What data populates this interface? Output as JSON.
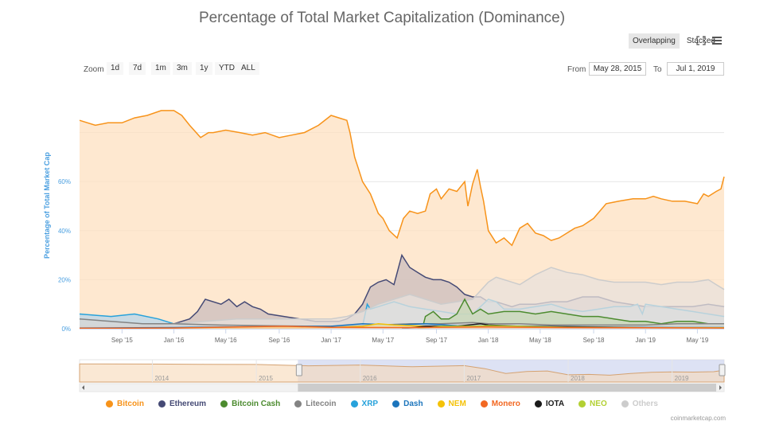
{
  "title": "Percentage of Total Market Capitalization (Dominance)",
  "modes": {
    "overlapping": "Overlapping",
    "stacked": "Stacked",
    "fullscreen_icon": "fullscreen-icon",
    "menu_icon": "menu-icon"
  },
  "zoom": {
    "label": "Zoom",
    "buttons": [
      "1d",
      "7d",
      "1m",
      "3m",
      "1y",
      "YTD",
      "ALL"
    ]
  },
  "range": {
    "from_label": "From",
    "from_value": "May 28, 2015",
    "to_label": "To",
    "to_value": "Jul 1, 2019"
  },
  "credit": "coinmarketcap.com",
  "chart_data": {
    "type": "area",
    "title": "Percentage of Total Market Capitalization (Dominance)",
    "ylabel": "Percentage of Total Market Cap",
    "ylim": [
      0,
      100
    ],
    "y_ticks": [
      0,
      20,
      40,
      60
    ],
    "y_tick_labels": [
      "0%",
      "20%",
      "40%",
      "60%"
    ],
    "x_range": [
      2015.4,
      2019.5
    ],
    "x_ticks": [
      {
        "x": 2015.67,
        "label": "Sep '15"
      },
      {
        "x": 2016.0,
        "label": "Jan '16"
      },
      {
        "x": 2016.33,
        "label": "May '16"
      },
      {
        "x": 2016.67,
        "label": "Sep '16"
      },
      {
        "x": 2017.0,
        "label": "Jan '17"
      },
      {
        "x": 2017.33,
        "label": "May '17"
      },
      {
        "x": 2017.67,
        "label": "Sep '17"
      },
      {
        "x": 2018.0,
        "label": "Jan '18"
      },
      {
        "x": 2018.33,
        "label": "May '18"
      },
      {
        "x": 2018.67,
        "label": "Sep '18"
      },
      {
        "x": 2019.0,
        "label": "Jan '19"
      },
      {
        "x": 2019.33,
        "label": "May '19"
      }
    ],
    "series": [
      {
        "name": "Bitcoin",
        "color": "#f7931a",
        "fill": "#fde0c0",
        "x": [
          2015.4,
          2015.5,
          2015.58,
          2015.67,
          2015.75,
          2015.83,
          2015.92,
          2016.0,
          2016.05,
          2016.1,
          2016.17,
          2016.22,
          2016.25,
          2016.33,
          2016.42,
          2016.5,
          2016.58,
          2016.67,
          2016.75,
          2016.83,
          2016.92,
          2017.0,
          2017.05,
          2017.1,
          2017.12,
          2017.15,
          2017.17,
          2017.2,
          2017.25,
          2017.3,
          2017.33,
          2017.37,
          2017.42,
          2017.46,
          2017.5,
          2017.55,
          2017.6,
          2017.63,
          2017.67,
          2017.7,
          2017.75,
          2017.8,
          2017.85,
          2017.87,
          2017.9,
          2017.93,
          2017.95,
          2017.97,
          2018.0,
          2018.05,
          2018.1,
          2018.15,
          2018.2,
          2018.25,
          2018.3,
          2018.35,
          2018.4,
          2018.45,
          2018.5,
          2018.55,
          2018.6,
          2018.67,
          2018.75,
          2018.83,
          2018.92,
          2019.0,
          2019.05,
          2019.1,
          2019.17,
          2019.25,
          2019.33,
          2019.37,
          2019.4,
          2019.45,
          2019.48,
          2019.5
        ],
        "values": [
          85,
          83,
          84,
          84,
          86,
          87,
          89,
          89,
          87,
          83,
          78,
          80,
          80,
          81,
          80,
          79,
          80,
          78,
          79,
          80,
          83,
          87,
          86,
          85,
          80,
          70,
          66,
          60,
          55,
          47,
          45,
          40,
          37,
          45,
          48,
          47,
          48,
          55,
          57,
          53,
          57,
          56,
          60,
          50,
          59,
          65,
          58,
          52,
          40,
          35,
          37,
          34,
          41,
          43,
          39,
          38,
          36,
          37,
          39,
          41,
          42,
          45,
          51,
          52,
          53,
          53,
          54,
          53,
          52,
          52,
          51,
          55,
          54,
          56,
          57,
          62
        ]
      },
      {
        "name": "Ethereum",
        "color": "#454a75",
        "fill": "#cbbdbd",
        "x": [
          2015.4,
          2015.7,
          2015.9,
          2016.0,
          2016.1,
          2016.15,
          2016.2,
          2016.3,
          2016.35,
          2016.4,
          2016.45,
          2016.5,
          2016.55,
          2016.6,
          2016.7,
          2016.8,
          2016.9,
          2017.0,
          2017.05,
          2017.1,
          2017.15,
          2017.2,
          2017.25,
          2017.3,
          2017.35,
          2017.4,
          2017.45,
          2017.5,
          2017.55,
          2017.6,
          2017.65,
          2017.7,
          2017.75,
          2017.8,
          2017.85,
          2017.9,
          2017.95,
          2018.0,
          2018.05,
          2018.1,
          2018.15,
          2018.2,
          2018.3,
          2018.4,
          2018.5,
          2018.6,
          2018.7,
          2018.8,
          2018.9,
          2019.0,
          2019.1,
          2019.2,
          2019.3,
          2019.4,
          2019.5
        ],
        "values": [
          0,
          0.5,
          1,
          2,
          4,
          7,
          12,
          10,
          12,
          9,
          11,
          9,
          8,
          6,
          5,
          4,
          3,
          3,
          3,
          4,
          6,
          10,
          17,
          19,
          20,
          18,
          30,
          25,
          23,
          21,
          20,
          20,
          19,
          17,
          14,
          13,
          13,
          11,
          11,
          10,
          9,
          10,
          10,
          11,
          11,
          13,
          13,
          11,
          10,
          9,
          9,
          9,
          9,
          10,
          9
        ]
      },
      {
        "name": "XRP",
        "color": "#27a2db",
        "fill": "#b8d6ea",
        "x": [
          2015.4,
          2015.6,
          2015.75,
          2015.9,
          2016.0,
          2016.1,
          2016.3,
          2016.5,
          2016.7,
          2016.9,
          2017.0,
          2017.1,
          2017.2,
          2017.23,
          2017.25,
          2017.3,
          2017.4,
          2017.5,
          2017.6,
          2017.7,
          2017.8,
          2017.9,
          2017.95,
          2018.0,
          2018.05,
          2018.1,
          2018.2,
          2018.3,
          2018.4,
          2018.5,
          2018.6,
          2018.7,
          2018.8,
          2018.9,
          2018.95,
          2018.98,
          2019.0,
          2019.1,
          2019.2,
          2019.3,
          2019.4,
          2019.5
        ],
        "values": [
          6,
          5,
          6,
          4,
          2,
          1,
          1,
          1,
          0.8,
          0.6,
          0.5,
          0.5,
          1,
          10,
          8,
          9,
          11,
          9,
          8,
          7,
          6,
          6,
          9,
          12,
          11,
          8,
          8,
          9,
          10,
          8,
          7,
          8,
          9,
          9,
          10,
          6,
          10,
          9,
          8,
          7,
          6,
          5
        ]
      },
      {
        "name": "Others",
        "color": "#cccccc",
        "fill": "#e8e1dc",
        "x": [
          2015.4,
          2015.8,
          2016.0,
          2016.2,
          2016.4,
          2016.6,
          2016.8,
          2017.0,
          2017.1,
          2017.2,
          2017.3,
          2017.4,
          2017.5,
          2017.6,
          2017.7,
          2017.8,
          2017.9,
          2018.0,
          2018.05,
          2018.1,
          2018.2,
          2018.3,
          2018.4,
          2018.5,
          2018.6,
          2018.7,
          2018.8,
          2018.9,
          2019.0,
          2019.1,
          2019.2,
          2019.3,
          2019.4,
          2019.45,
          2019.5
        ],
        "values": [
          1,
          1,
          2,
          3,
          4,
          4,
          4,
          4,
          5,
          7,
          10,
          12,
          14,
          12,
          10,
          11,
          12,
          19,
          21,
          20,
          18,
          22,
          25,
          23,
          22,
          20,
          19,
          19,
          19,
          18,
          19,
          19,
          20,
          18,
          16
        ]
      },
      {
        "name": "Bitcoin Cash",
        "color": "#4c8b2f",
        "fill": "#c7d7b5",
        "x": [
          2017.58,
          2017.6,
          2017.65,
          2017.7,
          2017.75,
          2017.8,
          2017.85,
          2017.9,
          2017.95,
          2018.0,
          2018.1,
          2018.2,
          2018.3,
          2018.4,
          2018.5,
          2018.6,
          2018.7,
          2018.8,
          2018.9,
          2019.0,
          2019.1,
          2019.2,
          2019.3,
          2019.4,
          2019.5
        ],
        "values": [
          0,
          5,
          7,
          4,
          4,
          6,
          12,
          6,
          8,
          6,
          7,
          7,
          6,
          7,
          6,
          5,
          5,
          4,
          3,
          3,
          2,
          3,
          3,
          2,
          2
        ]
      },
      {
        "name": "Litecoin",
        "color": "#838383",
        "fill": "#d6d6d6",
        "x": [
          2015.4,
          2015.6,
          2015.8,
          2016.0,
          2016.3,
          2016.6,
          2016.9,
          2017.1,
          2017.3,
          2017.5,
          2017.7,
          2017.9,
          2018.0,
          2018.2,
          2018.4,
          2018.6,
          2018.8,
          2019.0,
          2019.2,
          2019.4,
          2019.5
        ],
        "values": [
          4,
          3,
          2,
          2,
          1.5,
          1.2,
          1,
          1,
          1.5,
          2,
          2,
          2.5,
          2,
          2,
          1.5,
          1.5,
          1.5,
          1.5,
          2,
          2,
          2
        ]
      },
      {
        "name": "Dash",
        "color": "#1c75bc",
        "fill": "#b9cfe0",
        "x": [
          2015.4,
          2016.0,
          2016.5,
          2017.0,
          2017.2,
          2017.4,
          2017.6,
          2017.8,
          2018.0,
          2018.3,
          2018.6,
          2018.9,
          2019.2,
          2019.5
        ],
        "values": [
          0.3,
          0.5,
          0.8,
          1,
          2,
          1.5,
          2,
          1.2,
          1,
          1,
          0.8,
          0.6,
          0.5,
          0.5
        ]
      },
      {
        "name": "NEM",
        "color": "#f4c208",
        "fill": "#f8e7a9",
        "x": [
          2015.4,
          2017.0,
          2017.2,
          2017.3,
          2017.4,
          2017.6,
          2017.8,
          2018.0,
          2018.2,
          2018.5,
          2019.0,
          2019.5
        ],
        "values": [
          0,
          0.5,
          1,
          2,
          1.5,
          1,
          0.8,
          1,
          0.5,
          0.3,
          0.2,
          0.2
        ]
      },
      {
        "name": "IOTA",
        "color": "#1a1a1a",
        "fill": "#c9c9c9",
        "x": [
          2017.45,
          2017.6,
          2017.8,
          2017.95,
          2018.0,
          2018.2,
          2018.5,
          2019.0,
          2019.5
        ],
        "values": [
          0,
          1,
          1,
          2,
          1.5,
          1,
          0.8,
          0.4,
          0.2
        ]
      },
      {
        "name": "NEO",
        "color": "#b3d033",
        "fill": "#e2eda8",
        "x": [
          2017.55,
          2017.7,
          2017.9,
          2018.0,
          2018.2,
          2018.5,
          2019.0,
          2019.5
        ],
        "values": [
          0,
          1,
          1,
          1.2,
          1,
          0.6,
          0.4,
          0.4
        ]
      },
      {
        "name": "Monero",
        "color": "#f26822",
        "fill": "#f9cdb1",
        "x": [
          2015.4,
          2016.0,
          2016.7,
          2017.0,
          2017.5,
          2018.0,
          2018.5,
          2019.0,
          2019.5
        ],
        "values": [
          0.2,
          0.3,
          1,
          0.6,
          0.5,
          0.7,
          0.5,
          0.4,
          0.3
        ]
      }
    ],
    "legend": [
      "Bitcoin",
      "Ethereum",
      "Bitcoin Cash",
      "Litecoin",
      "XRP",
      "Dash",
      "NEM",
      "Monero",
      "IOTA",
      "NEO",
      "Others"
    ],
    "navigator": {
      "x_range": [
        2013.3,
        2019.5
      ],
      "selected_range": [
        2015.4,
        2019.5
      ],
      "year_labels": [
        "2014",
        "2015",
        "2016",
        "2017",
        "2018",
        "2019"
      ],
      "year_ticks": [
        2014.0,
        2015.0,
        2016.0,
        2017.0,
        2018.0,
        2019.0
      ],
      "x": [
        2013.3,
        2014.0,
        2014.5,
        2015.0,
        2015.5,
        2016.0,
        2016.5,
        2017.0,
        2017.2,
        2017.4,
        2017.6,
        2017.8,
        2018.0,
        2018.2,
        2018.4,
        2018.6,
        2018.8,
        2019.0,
        2019.2,
        2019.4,
        2019.5
      ],
      "values": [
        95,
        94,
        93,
        92,
        85,
        89,
        80,
        86,
        70,
        45,
        55,
        58,
        38,
        40,
        36,
        45,
        51,
        53,
        52,
        54,
        62
      ]
    }
  }
}
